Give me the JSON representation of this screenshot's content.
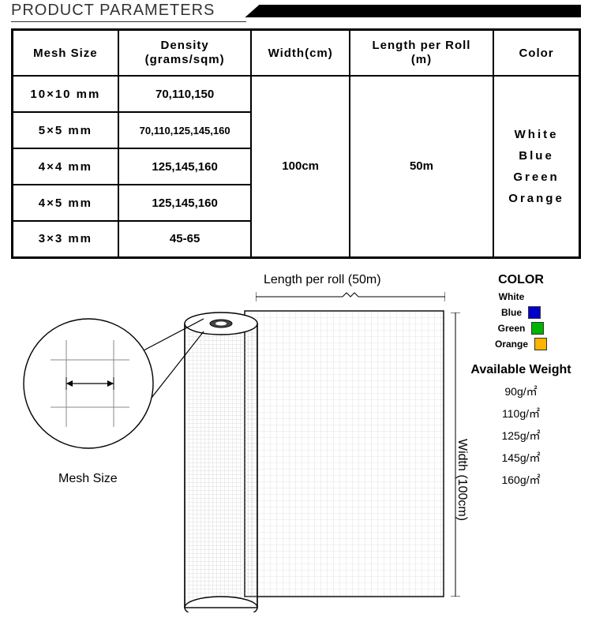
{
  "header": {
    "title": "PRODUCT PARAMETERS"
  },
  "table": {
    "columns": [
      "Mesh Size",
      "Density\n(grams/sqm)",
      "Width(cm)",
      "Length per Roll\n(m)",
      "Color"
    ],
    "meshRows": [
      {
        "mesh": "10×10 mm",
        "density": "70,110,150"
      },
      {
        "mesh": "5×5 mm",
        "density": "70,110,125,145,160"
      },
      {
        "mesh": "4×4 mm",
        "density": "125,145,160"
      },
      {
        "mesh": "4×5 mm",
        "density": "125,145,160"
      },
      {
        "mesh": "3×3 mm",
        "density": "45-65"
      }
    ],
    "width": "100cm",
    "length": "50m",
    "colors": "White\nBlue\nGreen\nOrange"
  },
  "diagram": {
    "lengthLabel": "Length per roll (50m)",
    "widthLabel": "Width (100cm)",
    "meshLabel": "Mesh Size",
    "gridColor": "#cccccc",
    "stroke": "#000000",
    "fill": "#ffffff"
  },
  "side": {
    "colorTitle": "COLOR",
    "colors": [
      {
        "name": "White",
        "hex": null
      },
      {
        "name": "Blue",
        "hex": "#0000cc"
      },
      {
        "name": "Green",
        "hex": "#00b400"
      },
      {
        "name": "Orange",
        "hex": "#ffb400"
      }
    ],
    "weightTitle": "Available Weight",
    "weights": [
      "90g/㎡",
      "110g/㎡",
      "125g/㎡",
      "145g/㎡",
      "160g/㎡"
    ]
  }
}
